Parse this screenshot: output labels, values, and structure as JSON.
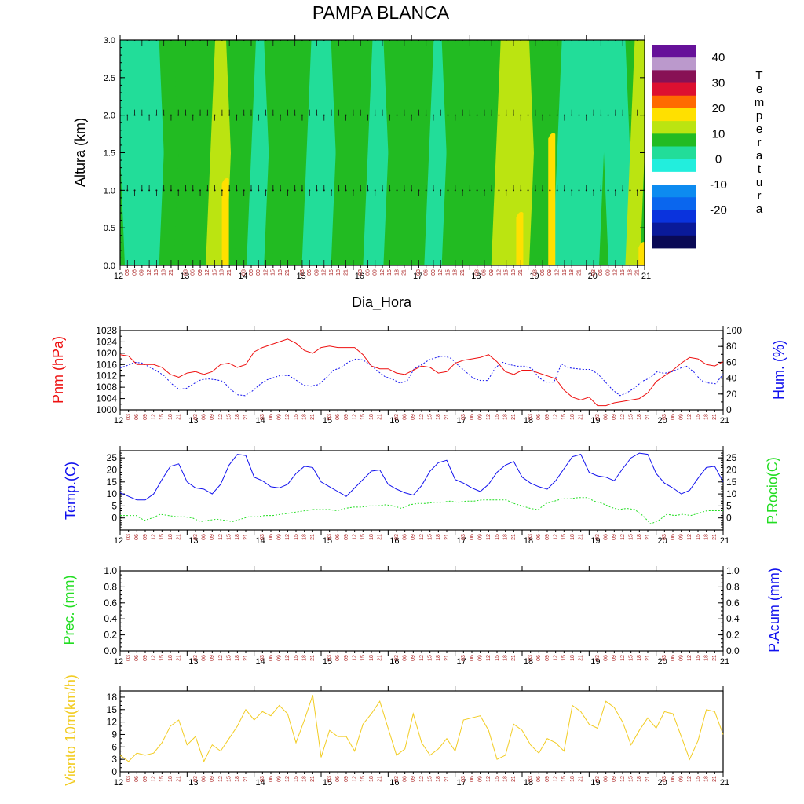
{
  "title": "PAMPA BLANCA",
  "days": [
    "12",
    "13",
    "14",
    "15",
    "16",
    "17",
    "18",
    "19",
    "20",
    "21"
  ],
  "hours": [
    "03",
    "06",
    "09",
    "12",
    "15",
    "18",
    "21"
  ],
  "colors": {
    "red": "#ee1111",
    "blue": "#1111ee",
    "green": "#22dd22",
    "yellow": "#f2cc22",
    "hourtick": "#aa2222"
  },
  "chart_data": [
    {
      "type": "heatmap",
      "name": "temperature-cross-section",
      "xlabel": "Dia_Hora",
      "ylabel": "Altura (km)",
      "ylim": [
        0,
        3
      ],
      "yticks": [
        "0.0",
        "0.5",
        "1.0",
        "1.5",
        "2.0",
        "2.5",
        "3.0"
      ],
      "colorbar_label": "Temperatura",
      "colorbar_ticks": [
        "40",
        "30",
        "20",
        "10",
        "0",
        "-10",
        "-20"
      ],
      "levels": [
        -25,
        -20,
        -15,
        -10,
        -5,
        0,
        5,
        10,
        15,
        20,
        25,
        30,
        35,
        40,
        45,
        50
      ],
      "level_colors": [
        "#0a0a55",
        "#0a1a99",
        "#0a33dd",
        "#0a66ee",
        "#0d8bf0",
        "#ffffff",
        "#22eedd",
        "#22dd99",
        "#22bb22",
        "#bbe411",
        "#ffe000",
        "#ff6a00",
        "#dd1030",
        "#881155",
        "#bb99cc",
        "#661199"
      ],
      "vertical_bands_t10_below_1km": [
        {
          "x": [
            0,
            0.75
          ],
          "temp": 12
        },
        {
          "x": [
            0.75,
            1.0
          ],
          "temp": 18
        },
        {
          "x": [
            1.0,
            1.55
          ],
          "temp": 17
        },
        {
          "x": [
            1.55,
            1.9
          ],
          "temp": 22
        },
        {
          "x": [
            1.9,
            2.25
          ],
          "temp": 17
        },
        {
          "x": [
            2.25,
            2.55
          ],
          "temp": 12
        },
        {
          "x": [
            2.55,
            3.2
          ],
          "temp": 17
        },
        {
          "x": [
            3.2,
            3.7
          ],
          "temp": 12
        },
        {
          "x": [
            3.7,
            4.25
          ],
          "temp": 17
        },
        {
          "x": [
            4.25,
            4.6
          ],
          "temp": 12
        },
        {
          "x": [
            4.6,
            5.3
          ],
          "temp": 17
        },
        {
          "x": [
            5.3,
            5.6
          ],
          "temp": 12
        },
        {
          "x": [
            5.6,
            6.45
          ],
          "temp": 17
        },
        {
          "x": [
            6.45,
            7.1
          ],
          "temp": 22
        },
        {
          "x": [
            7.1,
            7.5
          ],
          "temp": 17
        },
        {
          "x": [
            7.5,
            8.3
          ],
          "temp": 12
        },
        {
          "x": [
            8.3,
            8.75
          ],
          "temp": 12
        },
        {
          "x": [
            8.75,
            9.0
          ],
          "temp": 22
        }
      ],
      "hot_spots": [
        {
          "x": 1.8,
          "z_top": 1.15,
          "temp": 27
        },
        {
          "x": 6.85,
          "z_top": 0.7,
          "temp": 27
        },
        {
          "x": 7.4,
          "z_top": 1.75,
          "temp": 27
        },
        {
          "x": 8.95,
          "z_top": 0.3,
          "temp": 27
        }
      ],
      "wind_levels_km": [
        0,
        1,
        2,
        3
      ]
    },
    {
      "type": "line",
      "name": "pressure-humidity",
      "ylabel_left": "Pnm (hPa)",
      "ylabel_right": "Hum. (%)",
      "ylim_left": [
        1000,
        1028
      ],
      "yticks_left": [
        "1000",
        "1004",
        "1008",
        "1012",
        "1016",
        "1020",
        "1024",
        "1028"
      ],
      "ylim_right": [
        0,
        100
      ],
      "yticks_right": [
        "0",
        "20",
        "40",
        "60",
        "80",
        "100"
      ],
      "series": [
        {
          "name": "Pnm (hPa)",
          "axis": "left",
          "style": "solid",
          "color": "red",
          "values": [
            1019.5,
            1019,
            1016,
            1016,
            1016,
            1015,
            1012.5,
            1011.5,
            1013,
            1013.5,
            1012.5,
            1013.5,
            1016,
            1016.5,
            1015,
            1016,
            1020.5,
            1022,
            1023,
            1024,
            1025,
            1023.5,
            1021,
            1020,
            1022,
            1022.5,
            1022,
            1022,
            1022,
            1019.5,
            1015.5,
            1014.5,
            1014.5,
            1013,
            1012.5,
            1014,
            1015.5,
            1015,
            1013,
            1013.5,
            1016.5,
            1017.5,
            1018,
            1018.5,
            1019.5,
            1017,
            1013.5,
            1012.5,
            1014,
            1014,
            1013,
            1012,
            1011,
            1007,
            1004.5,
            1003.5,
            1004.5,
            1001.5,
            1001.5,
            1002.5,
            1003,
            1003.5,
            1004,
            1006,
            1010,
            1012,
            1014,
            1016.5,
            1018.5,
            1018,
            1016,
            1015.5,
            1017
          ]
        },
        {
          "name": "Hum. (%)",
          "axis": "right",
          "style": "dashed",
          "color": "blue",
          "values": [
            53,
            56,
            60,
            59,
            54,
            49,
            43,
            33,
            26,
            27,
            33,
            38,
            39,
            38,
            36,
            26,
            19,
            18,
            24,
            32,
            38,
            41,
            44,
            43,
            37,
            31,
            30,
            32,
            40,
            50,
            53,
            60,
            64,
            63,
            57,
            49,
            42,
            39,
            34,
            36,
            52,
            57,
            63,
            66,
            68,
            65,
            56,
            48,
            40,
            37,
            37,
            53,
            60,
            57,
            55,
            55,
            52,
            40,
            35,
            35,
            58,
            53,
            52,
            51,
            51,
            45,
            35,
            25,
            18,
            22,
            28,
            36,
            40,
            48,
            46,
            48,
            52,
            55,
            48,
            37,
            34,
            33,
            45
          ]
        }
      ]
    },
    {
      "type": "line",
      "name": "temperature-dewpoint",
      "ylabel_left": "Temp.(C)",
      "ylabel_right": "P.Rocio(C)",
      "ylim": [
        -5,
        28
      ],
      "yticks": [
        "0",
        "5",
        "10",
        "15",
        "20",
        "25"
      ],
      "series": [
        {
          "name": "Temp.(C)",
          "axis": "left",
          "style": "solid",
          "color": "blue",
          "values": [
            10.5,
            9,
            7.5,
            7.5,
            10,
            16,
            21.5,
            22.5,
            15,
            12.5,
            12,
            10,
            14,
            22,
            26.5,
            26,
            17,
            15.5,
            13,
            12.5,
            14,
            18.5,
            21.5,
            21,
            15,
            13,
            11,
            9,
            12.5,
            16,
            19.5,
            20,
            14,
            12,
            10.5,
            9.5,
            13.5,
            19.5,
            23,
            24,
            16,
            14.5,
            12.5,
            11,
            14,
            19,
            22,
            23.5,
            17,
            14.5,
            13,
            12,
            15.5,
            20.5,
            25.5,
            26.5,
            19,
            17.5,
            17,
            15.5,
            20.5,
            25,
            27,
            26.5,
            18.5,
            14.5,
            12.5,
            10,
            11.5,
            16.5,
            21,
            21.5,
            15
          ]
        },
        {
          "name": "P.Rocio(C)",
          "axis": "right",
          "style": "dashed",
          "color": "green",
          "values": [
            1,
            1,
            1,
            -1,
            0,
            1.5,
            1,
            0.5,
            0.5,
            0,
            -1.5,
            -1,
            -0.5,
            -1,
            -1.5,
            -0.5,
            0.5,
            0.5,
            1,
            1,
            1.5,
            2,
            2.5,
            3,
            3.5,
            3.5,
            3.5,
            3,
            4,
            4.5,
            4.5,
            5,
            5,
            5.5,
            5,
            4,
            5.5,
            6,
            6,
            6.5,
            6.5,
            7,
            6.5,
            7,
            7,
            7.5,
            7.5,
            7.5,
            7.5,
            6,
            5,
            4,
            3.5,
            6,
            7,
            8,
            8,
            8.5,
            8.5,
            7,
            6,
            4.5,
            3.5,
            4,
            3.5,
            1,
            -2.5,
            -1,
            1.5,
            1,
            1.5,
            1,
            2,
            3,
            3,
            3
          ]
        }
      ]
    },
    {
      "type": "line",
      "name": "precipitation",
      "ylabel_left": "Prec. (mm)",
      "ylabel_right": "P.Acum (mm)",
      "ylim": [
        0,
        1
      ],
      "yticks": [
        "0.0",
        "0.2",
        "0.4",
        "0.6",
        "0.8",
        "1.0"
      ],
      "series": []
    },
    {
      "type": "line",
      "name": "wind",
      "ylabel_left": "Viento 10m(km/h)",
      "ylim": [
        0,
        19.5
      ],
      "yticks": [
        "0",
        "3",
        "6",
        "9",
        "12",
        "15",
        "18"
      ],
      "series": [
        {
          "name": "Viento 10m(km/h)",
          "axis": "left",
          "style": "solid",
          "color": "yellow",
          "values": [
            4,
            2.5,
            4.5,
            4,
            4.5,
            7,
            11,
            12.5,
            6.5,
            8.5,
            2.5,
            6.5,
            5,
            8,
            11,
            15,
            12.5,
            14.5,
            13.5,
            16,
            14,
            7,
            12.5,
            18.5,
            3.5,
            10,
            8.5,
            8.5,
            5,
            11.5,
            14,
            17,
            10.5,
            4,
            5.5,
            14,
            7,
            4,
            5.5,
            8,
            5,
            12.5,
            13,
            13.5,
            10,
            3,
            4,
            11.5,
            10,
            6.5,
            4.5,
            8,
            7,
            5,
            16,
            14.5,
            11.5,
            10.5,
            17,
            15.5,
            12,
            6.5,
            10,
            13,
            10.5,
            14.5,
            14,
            8.5,
            3,
            7.5,
            15,
            14.5,
            9
          ]
        }
      ]
    }
  ]
}
